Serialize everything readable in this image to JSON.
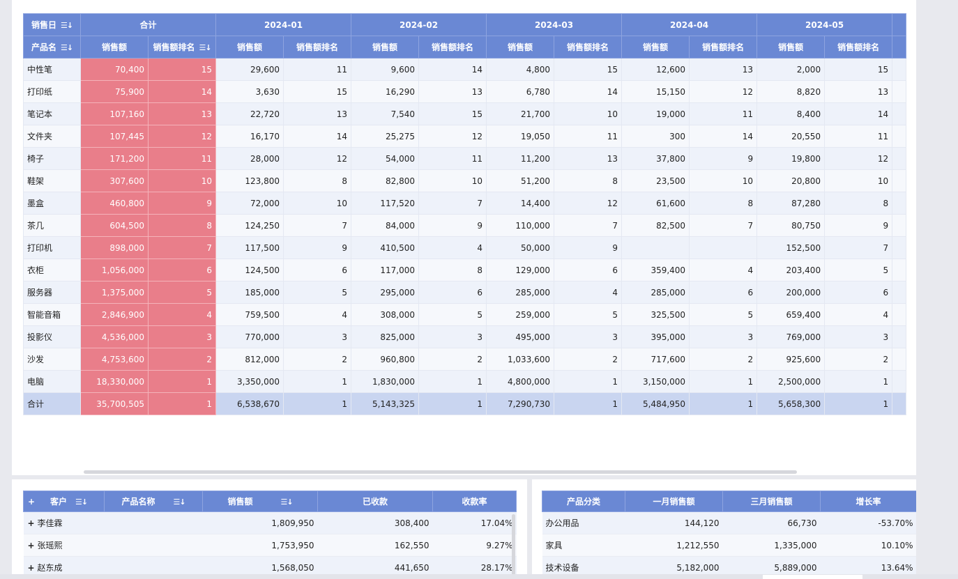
{
  "main_table": {
    "header_row1": {
      "date_label": "销售日",
      "total_label": "合计",
      "months": [
        "2024-01",
        "2024-02",
        "2024-03",
        "2024-04",
        "2024-05"
      ]
    },
    "header_row2": {
      "product_label": "产品名",
      "amount_label": "销售额",
      "rank_label": "销售额排名",
      "rank_label_cut": "销售额排名"
    },
    "rows": [
      {
        "name": "中性笔",
        "total": "70,400",
        "total_rank": "15",
        "m": [
          [
            "29,600",
            "11"
          ],
          [
            "9,600",
            "14"
          ],
          [
            "4,800",
            "15"
          ],
          [
            "12,600",
            "13"
          ],
          [
            "2,000",
            "15"
          ]
        ]
      },
      {
        "name": "打印纸",
        "total": "75,900",
        "total_rank": "14",
        "m": [
          [
            "3,630",
            "15"
          ],
          [
            "16,290",
            "13"
          ],
          [
            "6,780",
            "14"
          ],
          [
            "15,150",
            "12"
          ],
          [
            "8,820",
            "13"
          ]
        ]
      },
      {
        "name": "笔记本",
        "total": "107,160",
        "total_rank": "13",
        "m": [
          [
            "22,720",
            "13"
          ],
          [
            "7,540",
            "15"
          ],
          [
            "21,700",
            "10"
          ],
          [
            "19,000",
            "11"
          ],
          [
            "8,400",
            "14"
          ]
        ]
      },
      {
        "name": "文件夹",
        "total": "107,445",
        "total_rank": "12",
        "m": [
          [
            "16,170",
            "14"
          ],
          [
            "25,275",
            "12"
          ],
          [
            "19,050",
            "11"
          ],
          [
            "300",
            "14"
          ],
          [
            "20,550",
            "11"
          ]
        ]
      },
      {
        "name": "椅子",
        "total": "171,200",
        "total_rank": "11",
        "m": [
          [
            "28,000",
            "12"
          ],
          [
            "54,000",
            "11"
          ],
          [
            "11,200",
            "13"
          ],
          [
            "37,800",
            "9"
          ],
          [
            "19,800",
            "12"
          ]
        ]
      },
      {
        "name": "鞋架",
        "total": "307,600",
        "total_rank": "10",
        "m": [
          [
            "123,800",
            "8"
          ],
          [
            "82,800",
            "10"
          ],
          [
            "51,200",
            "8"
          ],
          [
            "23,500",
            "10"
          ],
          [
            "20,800",
            "10"
          ]
        ]
      },
      {
        "name": "墨盒",
        "total": "460,800",
        "total_rank": "9",
        "m": [
          [
            "72,000",
            "10"
          ],
          [
            "117,520",
            "7"
          ],
          [
            "14,400",
            "12"
          ],
          [
            "61,600",
            "8"
          ],
          [
            "87,280",
            "8"
          ]
        ]
      },
      {
        "name": "茶几",
        "total": "604,500",
        "total_rank": "8",
        "m": [
          [
            "124,250",
            "7"
          ],
          [
            "84,000",
            "9"
          ],
          [
            "110,000",
            "7"
          ],
          [
            "82,500",
            "7"
          ],
          [
            "80,750",
            "9"
          ]
        ]
      },
      {
        "name": "打印机",
        "total": "898,000",
        "total_rank": "7",
        "m": [
          [
            "117,500",
            "9"
          ],
          [
            "410,500",
            "4"
          ],
          [
            "50,000",
            "9"
          ],
          [
            "",
            ""
          ],
          [
            "152,500",
            "7"
          ]
        ]
      },
      {
        "name": "衣柜",
        "total": "1,056,000",
        "total_rank": "6",
        "m": [
          [
            "124,500",
            "6"
          ],
          [
            "117,000",
            "8"
          ],
          [
            "129,000",
            "6"
          ],
          [
            "359,400",
            "4"
          ],
          [
            "203,400",
            "5"
          ]
        ]
      },
      {
        "name": "服务器",
        "total": "1,375,000",
        "total_rank": "5",
        "m": [
          [
            "185,000",
            "5"
          ],
          [
            "295,000",
            "6"
          ],
          [
            "285,000",
            "4"
          ],
          [
            "285,000",
            "6"
          ],
          [
            "200,000",
            "6"
          ]
        ]
      },
      {
        "name": "智能音箱",
        "total": "2,846,900",
        "total_rank": "4",
        "m": [
          [
            "759,500",
            "4"
          ],
          [
            "308,000",
            "5"
          ],
          [
            "259,000",
            "5"
          ],
          [
            "325,500",
            "5"
          ],
          [
            "659,400",
            "4"
          ]
        ]
      },
      {
        "name": "投影仪",
        "total": "4,536,000",
        "total_rank": "3",
        "m": [
          [
            "770,000",
            "3"
          ],
          [
            "825,000",
            "3"
          ],
          [
            "495,000",
            "3"
          ],
          [
            "395,000",
            "3"
          ],
          [
            "769,000",
            "3"
          ]
        ]
      },
      {
        "name": "沙发",
        "total": "4,753,600",
        "total_rank": "2",
        "m": [
          [
            "812,000",
            "2"
          ],
          [
            "960,800",
            "2"
          ],
          [
            "1,033,600",
            "2"
          ],
          [
            "717,600",
            "2"
          ],
          [
            "925,600",
            "2"
          ]
        ]
      },
      {
        "name": "电脑",
        "total": "18,330,000",
        "total_rank": "1",
        "m": [
          [
            "3,350,000",
            "1"
          ],
          [
            "1,830,000",
            "1"
          ],
          [
            "4,800,000",
            "1"
          ],
          [
            "3,150,000",
            "1"
          ],
          [
            "2,500,000",
            "1"
          ]
        ]
      }
    ],
    "total_row": {
      "name": "合计",
      "total": "35,700,505",
      "total_rank": "1",
      "m": [
        [
          "6,538,670",
          "1"
        ],
        [
          "5,143,325",
          "1"
        ],
        [
          "7,290,730",
          "1"
        ],
        [
          "5,484,950",
          "1"
        ],
        [
          "5,658,300",
          "1"
        ]
      ]
    }
  },
  "customer_table": {
    "headers": {
      "customer": "客户",
      "product": "产品名称",
      "amount": "销售额",
      "received": "已收款",
      "rate": "收款率"
    },
    "rows": [
      {
        "name": "李佳霖",
        "amount": "1,809,950",
        "received": "308,400",
        "rate": "17.04%"
      },
      {
        "name": "张瑶熙",
        "amount": "1,753,950",
        "received": "162,550",
        "rate": "9.27%"
      },
      {
        "name": "赵东成",
        "amount": "1,568,050",
        "received": "441,650",
        "rate": "28.17%"
      }
    ]
  },
  "category_table": {
    "headers": {
      "category": "产品分类",
      "jan": "一月销售额",
      "mar": "三月销售额",
      "growth": "增长率"
    },
    "rows": [
      {
        "name": "办公用品",
        "jan": "144,120",
        "mar": "66,730",
        "growth": "-53.70%"
      },
      {
        "name": "家具",
        "jan": "1,212,550",
        "mar": "1,335,000",
        "growth": "10.10%"
      },
      {
        "name": "技术设备",
        "jan": "5,182,000",
        "mar": "5,889,000",
        "growth": "13.64%"
      }
    ]
  },
  "icons": {
    "sort": "sort-icon",
    "expand": "plus-icon"
  },
  "colors": {
    "header": "#6a88d4",
    "highlight": "#e97e8a",
    "total_row": "#c9d5f0"
  }
}
